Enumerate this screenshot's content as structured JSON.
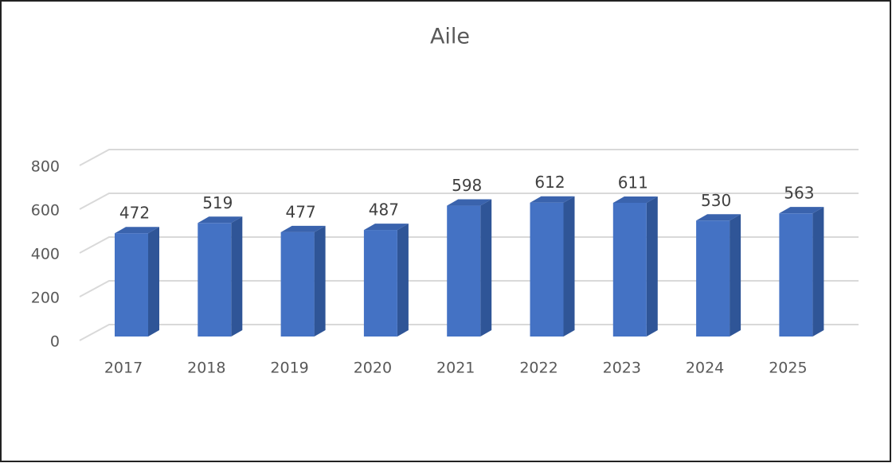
{
  "chart_data": {
    "type": "bar",
    "title": "Aile",
    "categories": [
      "2017",
      "2018",
      "2019",
      "2020",
      "2021",
      "2022",
      "2023",
      "2024",
      "2025"
    ],
    "values": [
      472,
      519,
      477,
      487,
      598,
      612,
      611,
      530,
      563
    ],
    "color": "#4472c4",
    "ylim": [
      0,
      800
    ],
    "yticks": [
      0,
      200,
      400,
      600,
      800
    ],
    "grid": true
  }
}
